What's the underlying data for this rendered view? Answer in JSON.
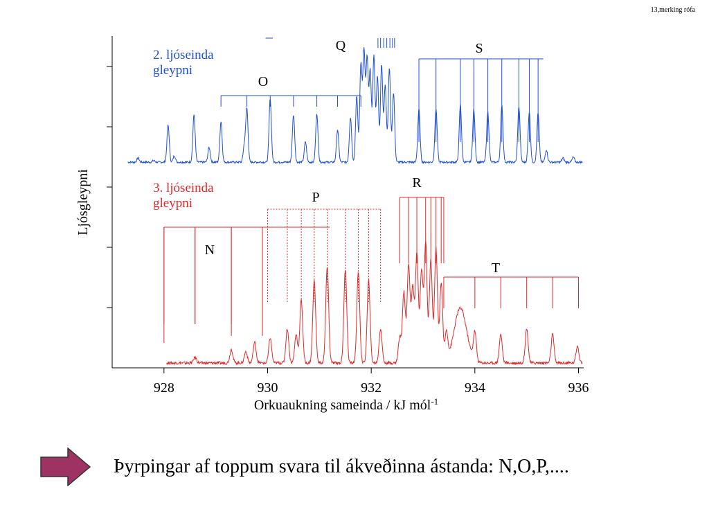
{
  "slide": {
    "header_note": "13,merking rófa",
    "caption": "Þyrpingar af toppum svara til ákveðinna ástanda: N,O,P,....",
    "arrow_icon": "right-arrow-icon",
    "arrow_color": "#9e3363"
  },
  "chart_data": {
    "type": "line",
    "title": "",
    "xlabel": "Orkuaukning sameinda / kJ mól",
    "xlabel_sup": "-1",
    "ylabel": "Ljósgleypni",
    "xlim": [
      927.0,
      936.1
    ],
    "xticks": [
      928,
      930,
      932,
      934,
      936
    ],
    "xtick_labels": [
      "928",
      "930",
      "932",
      "934",
      "936"
    ],
    "ytick_count": 5,
    "grid": false,
    "series": [
      {
        "name": "2. ljóseinda gleypni",
        "color": "#1f4fd6",
        "baseline": 0.05,
        "points": [
          [
            927.3,
            0.0
          ],
          [
            927.5,
            0.05
          ],
          [
            927.8,
            0.02
          ],
          [
            928.08,
            0.45
          ],
          [
            928.2,
            0.08
          ],
          [
            928.58,
            0.58
          ],
          [
            928.87,
            0.18
          ],
          [
            929.1,
            0.5
          ],
          [
            929.55,
            0.2
          ],
          [
            929.6,
            0.65
          ],
          [
            930.05,
            0.78
          ],
          [
            930.5,
            0.58
          ],
          [
            930.73,
            0.25
          ],
          [
            930.95,
            0.6
          ],
          [
            931.35,
            0.4
          ],
          [
            931.6,
            0.55
          ],
          [
            931.72,
            0.8
          ],
          [
            931.8,
            1.2
          ],
          [
            931.86,
            1.35
          ],
          [
            931.92,
            1.25
          ],
          [
            931.98,
            1.1
          ],
          [
            932.05,
            1.3
          ],
          [
            932.12,
            1.05
          ],
          [
            932.2,
            1.2
          ],
          [
            932.27,
            0.95
          ],
          [
            932.35,
            1.15
          ],
          [
            932.43,
            0.85
          ],
          [
            932.92,
            0.65
          ],
          [
            933.25,
            0.65
          ],
          [
            933.72,
            0.7
          ],
          [
            933.98,
            0.65
          ],
          [
            934.25,
            0.62
          ],
          [
            934.52,
            0.7
          ],
          [
            934.85,
            0.68
          ],
          [
            935.05,
            0.62
          ],
          [
            935.22,
            0.6
          ],
          [
            935.38,
            0.15
          ],
          [
            935.7,
            0.05
          ],
          [
            935.9,
            0.06
          ]
        ],
        "label": [
          "2. ljóseinda",
          "gleypni"
        ]
      },
      {
        "name": "3. ljóseinda gleypni",
        "color": "#e02828",
        "baseline": 0.0,
        "points": [
          [
            928.6,
            0.05
          ],
          [
            929.3,
            0.12
          ],
          [
            929.58,
            0.1
          ],
          [
            929.75,
            0.18
          ],
          [
            930.05,
            0.22
          ],
          [
            930.38,
            0.3
          ],
          [
            930.55,
            0.25
          ],
          [
            930.65,
            0.55
          ],
          [
            930.9,
            0.72
          ],
          [
            931.15,
            0.85
          ],
          [
            931.5,
            0.82
          ],
          [
            931.75,
            0.8
          ],
          [
            931.95,
            0.72
          ],
          [
            932.18,
            0.3
          ],
          [
            932.55,
            0.22
          ],
          [
            932.63,
            0.62
          ],
          [
            932.72,
            0.85
          ],
          [
            932.8,
            0.65
          ],
          [
            932.88,
            0.95
          ],
          [
            932.97,
            0.8
          ],
          [
            933.05,
            1.05
          ],
          [
            933.15,
            0.9
          ],
          [
            933.25,
            1.0
          ],
          [
            933.35,
            0.7
          ],
          [
            933.45,
            0.25
          ],
          [
            933.72,
            0.48
          ],
          [
            934.0,
            0.25
          ],
          [
            934.5,
            0.25
          ],
          [
            935.0,
            0.3
          ],
          [
            935.5,
            0.25
          ],
          [
            935.98,
            0.15
          ]
        ],
        "label": [
          "3. ljóseinda",
          "gleypni"
        ]
      }
    ],
    "annotations": [
      {
        "label": "Q",
        "series": "2. ljóseinda gleypni",
        "style": "solid"
      },
      {
        "label": "O",
        "series": "2. ljóseinda gleypni",
        "style": "solid"
      },
      {
        "label": "S",
        "series": "2. ljóseinda gleypni",
        "style": "solid"
      },
      {
        "label": "R",
        "series": "3. ljóseinda gleypni",
        "style": "solid"
      },
      {
        "label": "P",
        "series": "3. ljóseinda gleypni",
        "style": "dotted"
      },
      {
        "label": "N",
        "series": "3. ljóseinda gleypni",
        "style": "solid"
      },
      {
        "label": "T",
        "series": "3. ljóseinda gleypni",
        "style": "solid"
      }
    ]
  }
}
